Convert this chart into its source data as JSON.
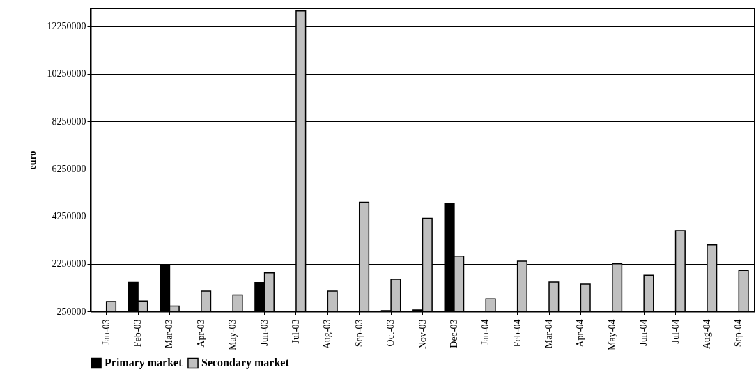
{
  "chart_data": {
    "type": "bar",
    "ylabel": "euro",
    "categories": [
      "Jan-03",
      "Feb-03",
      "Mar-03",
      "Apr-03",
      "May-03",
      "Jun-03",
      "Jul-03",
      "Aug-03",
      "Sep-03",
      "Oct-03",
      "Nov-03",
      "Dec-03",
      "Jan-04",
      "Feb-04",
      "Mar-04",
      "Apr-04",
      "May-04",
      "Jun-04",
      "Jul-04",
      "Aug-04",
      "Sep-04"
    ],
    "series": [
      {
        "name": "Primary market",
        "color": "#000000",
        "values": [
          null,
          1470000,
          2190000,
          null,
          null,
          1460000,
          null,
          null,
          null,
          280000,
          310000,
          4790000,
          null,
          null,
          null,
          null,
          null,
          null,
          null,
          null,
          null
        ]
      },
      {
        "name": "Secondary market",
        "color": "#c0c0c0",
        "values": [
          660000,
          680000,
          470000,
          1100000,
          940000,
          1870000,
          12890000,
          1100000,
          4840000,
          1600000,
          4160000,
          2570000,
          770000,
          2360000,
          1480000,
          1390000,
          2250000,
          1770000,
          3650000,
          3040000,
          1970000
        ]
      }
    ],
    "ylim": [
      250000,
      13000000
    ],
    "yticks": [
      250000,
      2250000,
      4250000,
      6250000,
      8250000,
      10250000,
      12250000
    ],
    "grid": "y",
    "legend": "bottom"
  }
}
